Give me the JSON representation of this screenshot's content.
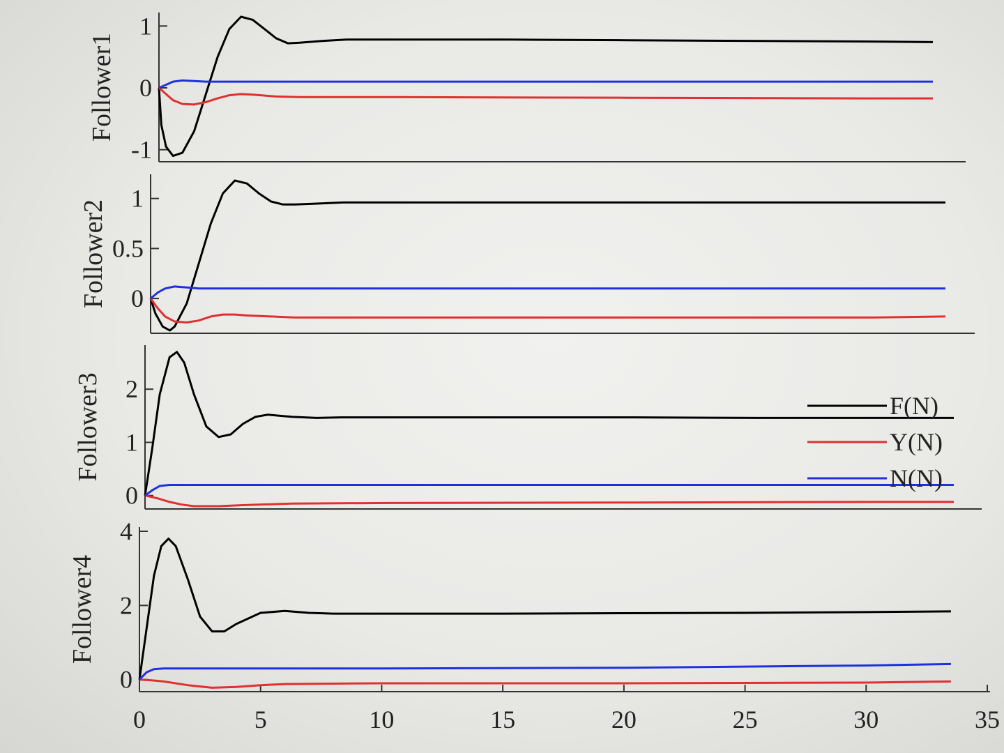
{
  "chart_data": [
    {
      "type": "line",
      "ylabel": "Follower1",
      "ylim": [
        -1.15,
        1.15
      ],
      "yticks": [
        -1,
        0,
        1
      ],
      "xlim": [
        0,
        33
      ],
      "series": [
        {
          "name": "F(N)",
          "color": "#000000",
          "x": [
            0,
            0.1,
            0.3,
            0.6,
            1.0,
            1.5,
            2.0,
            2.5,
            3.0,
            3.5,
            4.0,
            4.5,
            5.0,
            5.5,
            6.0,
            7.0,
            8.0,
            10,
            15,
            20,
            25,
            30,
            33
          ],
          "y": [
            0,
            -0.6,
            -0.95,
            -1.1,
            -1.05,
            -0.7,
            -0.1,
            0.5,
            0.95,
            1.15,
            1.1,
            0.95,
            0.8,
            0.72,
            0.73,
            0.76,
            0.78,
            0.78,
            0.78,
            0.77,
            0.76,
            0.75,
            0.74
          ]
        },
        {
          "name": "Y(N)",
          "color": "#e03030",
          "x": [
            0,
            0.3,
            0.6,
            1.0,
            1.5,
            2.0,
            2.5,
            3.0,
            3.5,
            4.0,
            5.0,
            6.0,
            8.0,
            10,
            20,
            30,
            33
          ],
          "y": [
            0,
            -0.1,
            -0.2,
            -0.26,
            -0.27,
            -0.23,
            -0.17,
            -0.12,
            -0.1,
            -0.11,
            -0.14,
            -0.15,
            -0.15,
            -0.15,
            -0.16,
            -0.17,
            -0.17
          ]
        },
        {
          "name": "N(N)",
          "color": "#2030e0",
          "x": [
            0,
            0.3,
            0.6,
            1.0,
            1.5,
            2.0,
            3.0,
            5.0,
            10,
            20,
            30,
            33
          ],
          "y": [
            0,
            0.05,
            0.1,
            0.12,
            0.11,
            0.1,
            0.1,
            0.1,
            0.1,
            0.1,
            0.1,
            0.1
          ]
        }
      ]
    },
    {
      "type": "line",
      "ylabel": "Follower2",
      "ylim": [
        -0.32,
        1.2
      ],
      "yticks": [
        0,
        0.5,
        1
      ],
      "yticklabels": [
        "0",
        "0.5",
        "1"
      ],
      "xlim": [
        0,
        33
      ],
      "series": [
        {
          "name": "F(N)",
          "color": "#000000",
          "x": [
            0,
            0.2,
            0.5,
            0.8,
            1.0,
            1.5,
            2.0,
            2.5,
            3.0,
            3.5,
            4.0,
            4.5,
            5.0,
            5.5,
            6.0,
            7.0,
            8.0,
            10,
            15,
            20,
            25,
            30,
            33
          ],
          "y": [
            0,
            -0.15,
            -0.28,
            -0.32,
            -0.28,
            -0.05,
            0.35,
            0.75,
            1.05,
            1.18,
            1.15,
            1.05,
            0.97,
            0.94,
            0.94,
            0.95,
            0.96,
            0.96,
            0.96,
            0.96,
            0.96,
            0.96,
            0.96
          ]
        },
        {
          "name": "Y(N)",
          "color": "#e03030",
          "x": [
            0,
            0.3,
            0.6,
            1.0,
            1.5,
            2.0,
            2.5,
            3.0,
            3.5,
            4.0,
            5.0,
            6.0,
            8.0,
            10,
            20,
            30,
            33
          ],
          "y": [
            0,
            -0.1,
            -0.18,
            -0.23,
            -0.24,
            -0.22,
            -0.18,
            -0.16,
            -0.16,
            -0.17,
            -0.18,
            -0.19,
            -0.19,
            -0.19,
            -0.19,
            -0.19,
            -0.18
          ]
        },
        {
          "name": "N(N)",
          "color": "#2030e0",
          "x": [
            0,
            0.3,
            0.6,
            1.0,
            1.5,
            2.0,
            3.0,
            5.0,
            10,
            20,
            30,
            33
          ],
          "y": [
            0,
            0.06,
            0.1,
            0.12,
            0.11,
            0.1,
            0.1,
            0.1,
            0.1,
            0.1,
            0.1,
            0.1
          ]
        }
      ]
    },
    {
      "type": "line",
      "ylabel": "Follower3",
      "ylim": [
        -0.2,
        2.75
      ],
      "yticks": [
        0,
        1,
        2
      ],
      "xlim": [
        0,
        33
      ],
      "series": [
        {
          "name": "F(N)",
          "color": "#000000",
          "x": [
            0,
            0.3,
            0.6,
            1.0,
            1.3,
            1.6,
            2.0,
            2.5,
            3.0,
            3.5,
            4.0,
            4.5,
            5.0,
            6.0,
            7.0,
            8.0,
            10,
            15,
            20,
            25,
            30,
            33
          ],
          "y": [
            0,
            0.9,
            1.9,
            2.6,
            2.7,
            2.5,
            1.9,
            1.3,
            1.1,
            1.15,
            1.35,
            1.48,
            1.52,
            1.48,
            1.46,
            1.47,
            1.47,
            1.47,
            1.47,
            1.46,
            1.46,
            1.46
          ]
        },
        {
          "name": "Y(N)",
          "color": "#e03030",
          "x": [
            0,
            0.5,
            1.0,
            1.5,
            2.0,
            3.0,
            4.0,
            6.0,
            10,
            20,
            30,
            33
          ],
          "y": [
            0,
            -0.05,
            -0.12,
            -0.17,
            -0.2,
            -0.2,
            -0.18,
            -0.15,
            -0.14,
            -0.13,
            -0.12,
            -0.12
          ]
        },
        {
          "name": "N(N)",
          "color": "#2030e0",
          "x": [
            0,
            0.3,
            0.6,
            1.0,
            2.0,
            5.0,
            10,
            20,
            30,
            33
          ],
          "y": [
            0,
            0.1,
            0.18,
            0.2,
            0.2,
            0.2,
            0.2,
            0.2,
            0.2,
            0.2
          ]
        }
      ]
    },
    {
      "type": "line",
      "ylabel": "Follower4",
      "ylim": [
        -0.25,
        4.0
      ],
      "yticks": [
        0,
        2,
        4
      ],
      "xlim": [
        0,
        35
      ],
      "xticks": [
        0,
        5,
        10,
        15,
        20,
        25,
        30,
        35
      ],
      "series": [
        {
          "name": "F(N)",
          "color": "#000000",
          "x": [
            0,
            0.3,
            0.6,
            0.9,
            1.2,
            1.5,
            2.0,
            2.5,
            3.0,
            3.5,
            4.0,
            5.0,
            6.0,
            7.0,
            8.0,
            10,
            15,
            20,
            25,
            30,
            33.5
          ],
          "y": [
            0,
            1.4,
            2.8,
            3.6,
            3.8,
            3.6,
            2.7,
            1.7,
            1.3,
            1.3,
            1.5,
            1.8,
            1.85,
            1.8,
            1.78,
            1.78,
            1.78,
            1.79,
            1.8,
            1.82,
            1.84
          ]
        },
        {
          "name": "Y(N)",
          "color": "#e03030",
          "x": [
            0,
            0.5,
            1.0,
            2.0,
            3.0,
            4.0,
            5.0,
            6.0,
            10,
            20,
            30,
            33.5
          ],
          "y": [
            0,
            -0.02,
            -0.05,
            -0.15,
            -0.22,
            -0.2,
            -0.15,
            -0.12,
            -0.1,
            -0.1,
            -0.08,
            -0.05
          ]
        },
        {
          "name": "N(N)",
          "color": "#2030e0",
          "x": [
            0,
            0.3,
            0.6,
            1.0,
            2.0,
            5.0,
            10,
            20,
            30,
            33.5
          ],
          "y": [
            0,
            0.2,
            0.28,
            0.3,
            0.3,
            0.3,
            0.3,
            0.32,
            0.38,
            0.42
          ]
        }
      ]
    }
  ],
  "legend": {
    "position": "right-middle",
    "entries": [
      {
        "label": "F(N)",
        "color": "#000000"
      },
      {
        "label": "Y(N)",
        "color": "#e03030"
      },
      {
        "label": "N(N)",
        "color": "#2030e0"
      }
    ]
  }
}
